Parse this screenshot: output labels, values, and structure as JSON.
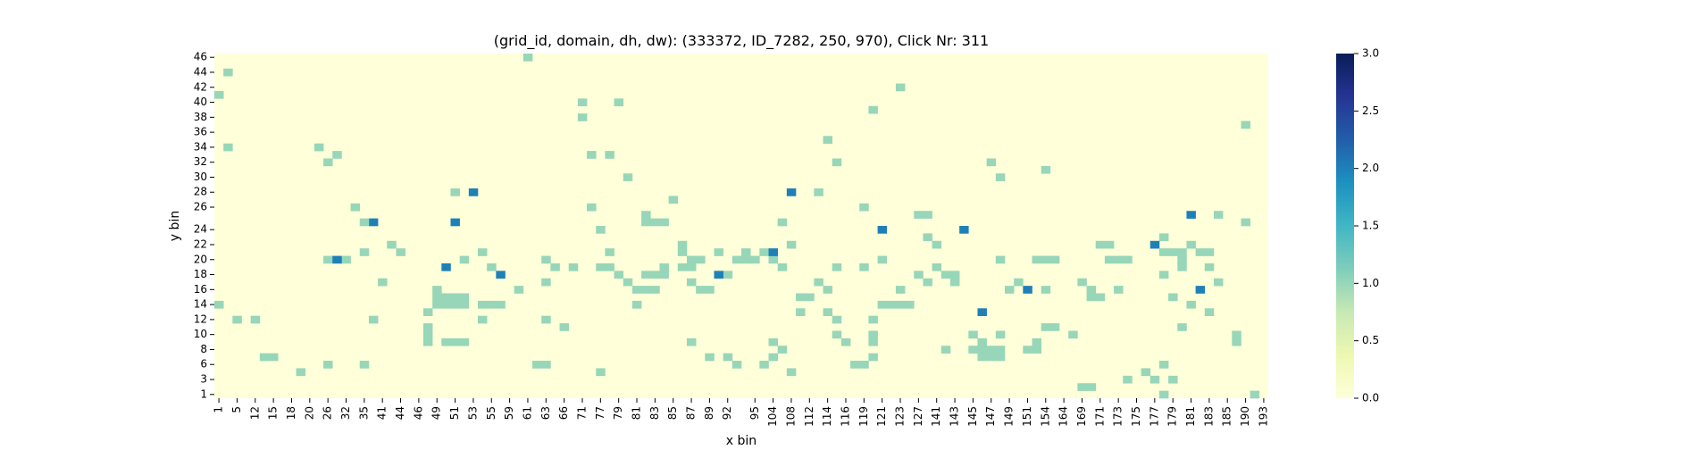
{
  "chart_data": {
    "type": "heatmap",
    "title": "(grid_id, domain, dh, dw): (333372, ID_7282, 250, 970), Click Nr: 311",
    "xlabel": "x bin",
    "ylabel": "y bin",
    "x_tick_labels": [
      "1",
      "5",
      "12",
      "15",
      "18",
      "20",
      "26",
      "32",
      "35",
      "41",
      "44",
      "46",
      "49",
      "51",
      "53",
      "55",
      "59",
      "61",
      "63",
      "66",
      "71",
      "77",
      "79",
      "81",
      "83",
      "85",
      "87",
      "89",
      "92",
      "95",
      "104",
      "108",
      "112",
      "114",
      "116",
      "119",
      "121",
      "123",
      "127",
      "141",
      "143",
      "145",
      "147",
      "149",
      "151",
      "154",
      "164",
      "169",
      "171",
      "173",
      "175",
      "177",
      "179",
      "181",
      "183",
      "185",
      "190",
      "193"
    ],
    "y_tick_labels": [
      "46",
      "44",
      "42",
      "40",
      "38",
      "36",
      "34",
      "32",
      "30",
      "28",
      "26",
      "24",
      "22",
      "20",
      "18",
      "16",
      "14",
      "12",
      "10",
      "8",
      "6",
      "3",
      "1"
    ],
    "colorbar": {
      "min": 0.0,
      "max": 3.0,
      "ticks": [
        "0.0",
        "0.5",
        "1.0",
        "1.5",
        "2.0",
        "2.5",
        "3.0"
      ],
      "colormap": "YlGnBu"
    },
    "n_columns": 116,
    "n_rows": 46,
    "cells": [
      [
        34,
        0,
        1
      ],
      [
        1,
        2,
        1
      ],
      [
        0,
        5,
        1
      ],
      [
        75,
        4,
        1
      ],
      [
        44,
        6,
        1
      ],
      [
        40,
        6,
        1
      ],
      [
        72,
        7,
        1
      ],
      [
        40,
        8,
        1
      ],
      [
        113,
        9,
        1
      ],
      [
        67,
        11,
        1
      ],
      [
        1,
        12,
        1
      ],
      [
        11,
        12,
        1
      ],
      [
        13,
        13,
        1
      ],
      [
        41,
        13,
        1
      ],
      [
        43,
        13,
        1
      ],
      [
        12,
        14,
        1
      ],
      [
        68,
        14,
        1
      ],
      [
        85,
        14,
        1
      ],
      [
        91,
        15,
        1
      ],
      [
        45,
        16,
        1
      ],
      [
        86,
        16,
        1
      ],
      [
        26,
        18,
        1
      ],
      [
        50,
        19,
        1
      ],
      [
        41,
        20,
        1
      ],
      [
        71,
        20,
        1
      ],
      [
        62,
        22,
        1
      ],
      [
        113,
        22,
        1
      ],
      [
        42,
        23,
        1
      ],
      [
        78,
        24,
        1
      ],
      [
        104,
        24,
        1
      ],
      [
        19,
        25,
        1
      ],
      [
        51,
        25,
        1
      ],
      [
        63,
        25,
        1
      ],
      [
        107,
        25,
        1
      ],
      [
        16,
        26,
        1
      ],
      [
        20,
        26,
        1
      ],
      [
        29,
        26,
        1
      ],
      [
        27,
        27,
        1
      ],
      [
        36,
        27,
        1
      ],
      [
        61,
        27,
        1
      ],
      [
        73,
        27,
        1
      ],
      [
        86,
        27,
        1
      ],
      [
        100,
        27,
        1
      ],
      [
        106,
        27,
        1
      ],
      [
        37,
        28,
        1
      ],
      [
        42,
        28,
        1
      ],
      [
        49,
        28,
        1
      ],
      [
        62,
        28,
        1
      ],
      [
        68,
        28,
        1
      ],
      [
        71,
        28,
        1
      ],
      [
        106,
        28,
        1
      ],
      [
        104,
        29,
        1
      ],
      [
        56,
        29,
        1
      ],
      [
        18,
        30,
        1
      ],
      [
        36,
        30,
        1
      ],
      [
        45,
        30,
        1
      ],
      [
        66,
        30,
        1
      ],
      [
        78,
        30,
        1
      ],
      [
        81,
        30,
        1
      ],
      [
        99,
        31,
        1
      ],
      [
        109,
        28,
        1
      ],
      [
        110,
        30,
        1
      ],
      [
        24,
        31,
        1
      ],
      [
        33,
        31,
        1
      ],
      [
        75,
        31,
        1
      ],
      [
        87,
        31,
        1
      ],
      [
        91,
        31,
        1
      ],
      [
        96,
        32,
        1
      ],
      [
        105,
        32,
        1
      ],
      [
        64,
        32,
        1
      ],
      [
        0,
        33,
        1
      ],
      [
        46,
        33,
        1
      ],
      [
        64,
        34,
        1
      ],
      [
        67,
        34,
        1
      ],
      [
        109,
        34,
        1
      ],
      [
        68,
        35,
        1
      ],
      [
        17,
        35,
        1
      ],
      [
        38,
        36,
        1
      ],
      [
        83,
        37,
        1
      ],
      [
        106,
        36,
        1
      ],
      [
        2,
        35,
        1
      ],
      [
        92,
        36,
        1
      ],
      [
        112,
        38,
        1
      ],
      [
        52,
        38,
        1
      ],
      [
        61,
        38,
        1
      ],
      [
        69,
        38,
        1
      ],
      [
        94,
        37,
        1
      ],
      [
        84,
        38,
        1
      ],
      [
        80,
        39,
        1
      ],
      [
        54,
        40,
        1
      ],
      [
        12,
        41,
        1
      ],
      [
        16,
        41,
        1
      ],
      [
        57,
        41,
        1
      ],
      [
        60,
        41,
        1
      ],
      [
        70,
        41,
        1
      ],
      [
        71,
        41,
        1
      ],
      [
        100,
        43,
        1
      ],
      [
        105,
        43,
        1
      ],
      [
        95,
        44,
        1
      ],
      [
        96,
        44,
        1
      ],
      [
        114,
        45,
        1
      ],
      [
        42,
        42,
        1
      ],
      [
        9,
        42,
        1
      ],
      [
        68,
        37,
        1
      ],
      [
        36,
        35,
        1
      ],
      [
        23,
        37,
        1
      ],
      [
        23,
        38,
        1
      ],
      [
        4,
        35,
        1
      ],
      [
        5,
        40,
        1
      ],
      [
        6,
        40,
        1
      ],
      [
        25,
        38,
        1
      ],
      [
        26,
        38,
        1
      ],
      [
        27,
        38,
        1
      ],
      [
        29,
        35,
        1
      ],
      [
        12,
        27,
        1
      ],
      [
        14,
        27,
        1
      ],
      [
        30,
        28,
        1
      ],
      [
        39,
        28,
        1
      ],
      [
        43,
        26,
        1
      ],
      [
        55,
        26,
        1
      ],
      [
        58,
        26,
        1
      ],
      [
        60,
        26,
        1
      ],
      [
        25,
        28,
        2
      ],
      [
        26,
        22,
        2
      ],
      [
        55,
        29,
        2
      ],
      [
        61,
        26,
        2
      ],
      [
        82,
        23,
        2
      ],
      [
        103,
        25,
        2
      ],
      [
        107,
        21,
        2
      ],
      [
        17,
        22,
        2
      ],
      [
        31,
        29,
        2
      ],
      [
        73,
        23,
        2
      ],
      [
        89,
        31,
        2
      ],
      [
        13,
        27,
        2
      ],
      [
        63,
        18,
        2
      ],
      [
        28,
        18,
        2
      ],
      [
        84,
        34,
        2
      ],
      [
        108,
        31,
        2
      ],
      [
        66,
        18,
        1
      ],
      [
        110,
        21,
        1
      ],
      [
        46,
        31,
        1
      ],
      [
        47,
        31,
        1
      ],
      [
        48,
        31,
        1
      ],
      [
        29,
        33,
        1
      ],
      [
        30,
        33,
        1
      ],
      [
        31,
        33,
        1
      ],
      [
        47,
        21,
        1
      ],
      [
        48,
        22,
        1
      ],
      [
        47,
        22,
        1
      ],
      [
        49,
        22,
        1
      ],
      [
        90,
        27,
        1
      ],
      [
        91,
        27,
        1
      ],
      [
        92,
        27,
        1
      ],
      [
        57,
        27,
        1
      ],
      [
        58,
        27,
        1
      ],
      [
        59,
        27,
        1
      ],
      [
        97,
        25,
        1
      ],
      [
        98,
        25,
        1
      ],
      [
        98,
        27,
        1
      ],
      [
        99,
        27,
        1
      ],
      [
        84,
        40,
        1
      ],
      [
        85,
        40,
        1
      ],
      [
        86,
        40,
        1
      ],
      [
        56,
        40,
        1
      ],
      [
        102,
        42,
        1
      ],
      [
        103,
        43,
        1
      ],
      [
        15,
        20,
        1
      ],
      [
        16,
        22,
        1
      ],
      [
        24,
        32,
        1
      ],
      [
        25,
        32,
        1
      ],
      [
        26,
        32,
        1
      ],
      [
        27,
        32,
        1
      ],
      [
        24,
        33,
        1
      ],
      [
        25,
        33,
        1
      ],
      [
        26,
        33,
        1
      ],
      [
        27,
        33,
        1
      ],
      [
        104,
        26,
        1
      ],
      [
        105,
        26,
        1
      ],
      [
        106,
        26,
        1
      ],
      [
        107,
        25,
        1
      ],
      [
        108,
        26,
        1
      ],
      [
        109,
        26,
        1
      ],
      [
        23,
        34,
        1
      ],
      [
        23,
        36,
        1
      ],
      [
        51,
        26,
        1
      ],
      [
        52,
        27,
        1
      ],
      [
        53,
        27,
        1
      ],
      [
        52,
        30,
        1
      ],
      [
        53,
        31,
        1
      ],
      [
        54,
        31,
        1
      ],
      [
        83,
        39,
        1
      ],
      [
        84,
        39,
        1
      ],
      [
        85,
        39,
        1
      ],
      [
        86,
        39,
        1
      ],
      [
        73,
        33,
        1
      ],
      [
        74,
        33,
        1
      ],
      [
        75,
        33,
        1
      ],
      [
        76,
        33,
        1
      ],
      [
        43,
        28,
        1
      ],
      [
        44,
        29,
        1
      ],
      [
        45,
        30,
        1
      ],
      [
        95,
        30,
        1
      ],
      [
        96,
        31,
        1
      ],
      [
        97,
        32,
        1
      ],
      [
        107,
        33,
        1
      ],
      [
        112,
        37,
        1
      ],
      [
        86,
        37,
        1
      ],
      [
        67,
        31,
        1
      ],
      [
        65,
        32,
        1
      ],
      [
        79,
        25,
        1
      ],
      [
        60,
        41,
        1
      ],
      [
        61,
        40,
        1
      ],
      [
        62,
        39,
        1
      ],
      [
        63,
        42,
        1
      ],
      [
        104,
        41,
        1
      ],
      [
        104,
        45,
        1
      ],
      [
        109,
        34,
        1
      ],
      [
        88,
        30,
        1
      ],
      [
        87,
        31,
        1
      ],
      [
        72,
        40,
        1
      ],
      [
        72,
        38,
        1
      ],
      [
        72,
        37,
        1
      ],
      [
        72,
        35,
        1
      ],
      [
        89,
        39,
        1
      ],
      [
        90,
        39,
        1
      ],
      [
        90,
        38,
        1
      ],
      [
        91,
        36,
        1
      ],
      [
        47,
        29,
        1
      ],
      [
        48,
        29,
        1
      ],
      [
        49,
        29,
        1
      ],
      [
        35,
        41,
        1
      ],
      [
        36,
        41,
        1
      ],
      [
        51,
        28,
        1
      ],
      [
        52,
        28,
        1
      ],
      [
        77,
        21,
        1
      ],
      [
        78,
        21,
        1
      ],
      [
        77,
        29,
        1
      ],
      [
        79,
        28,
        1
      ],
      [
        80,
        29,
        1
      ],
      [
        81,
        29,
        1
      ]
    ]
  }
}
